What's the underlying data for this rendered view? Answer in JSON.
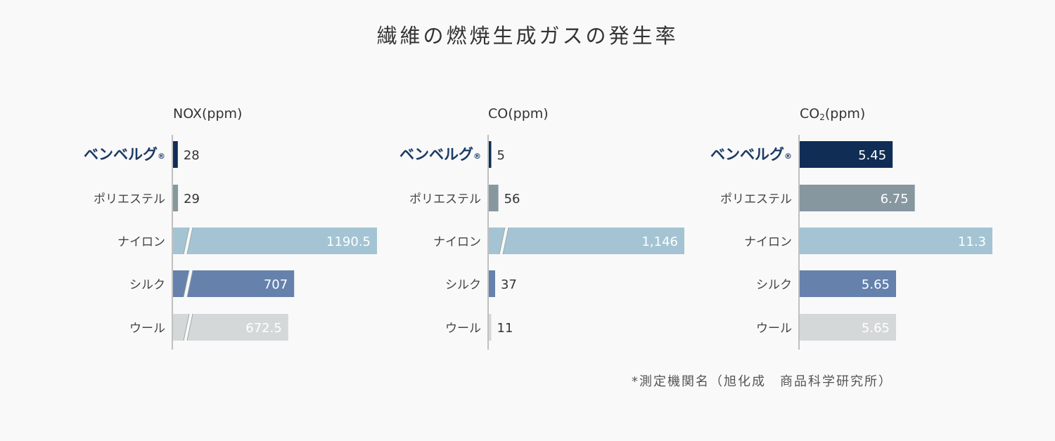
{
  "title": "繊維の燃焼生成ガスの発生率",
  "footnote": "*測定機関名（旭化成　商品科学研究所）",
  "colors": {
    "background": "#f9f9f9",
    "categories": [
      "#0f2d55",
      "#86979f",
      "#a4c4d3",
      "#6581ac",
      "#d4d8d8"
    ],
    "axis": "#999999",
    "category_label": "#444444",
    "highlight_label": "#1c3a64",
    "value_dark": "#333333",
    "value_light": "#ffffff"
  },
  "chart_data": [
    {
      "type": "bar",
      "orientation": "horizontal",
      "title": "NOX(ppm)",
      "categories": [
        "ベンベルグ®",
        "ポリエステル",
        "ナイロン",
        "シルク",
        "ウール"
      ],
      "values": [
        28,
        29,
        1190.5,
        707,
        672.5
      ],
      "value_labels": [
        "28",
        "29",
        "1190.5",
        "707",
        "672.5"
      ],
      "axis_break": [
        false,
        false,
        true,
        true,
        true
      ],
      "highlight_category": 0
    },
    {
      "type": "bar",
      "orientation": "horizontal",
      "title": "CO(ppm)",
      "categories": [
        "ベンベルグ®",
        "ポリエステル",
        "ナイロン",
        "シルク",
        "ウール"
      ],
      "values": [
        5,
        56,
        1146,
        37,
        11
      ],
      "value_labels": [
        "5",
        "56",
        "1,146",
        "37",
        "11"
      ],
      "axis_break": [
        false,
        false,
        true,
        false,
        false
      ],
      "highlight_category": 0
    },
    {
      "type": "bar",
      "orientation": "horizontal",
      "title": "CO2(ppm)",
      "categories": [
        "ベンベルグ®",
        "ポリエステル",
        "ナイロン",
        "シルク",
        "ウール"
      ],
      "values": [
        5.45,
        6.75,
        11.3,
        5.65,
        5.65
      ],
      "value_labels": [
        "5.45",
        "6.75",
        "11.3",
        "5.65",
        "5.65"
      ],
      "axis_break": [
        false,
        false,
        false,
        false,
        false
      ],
      "highlight_category": 0
    }
  ]
}
